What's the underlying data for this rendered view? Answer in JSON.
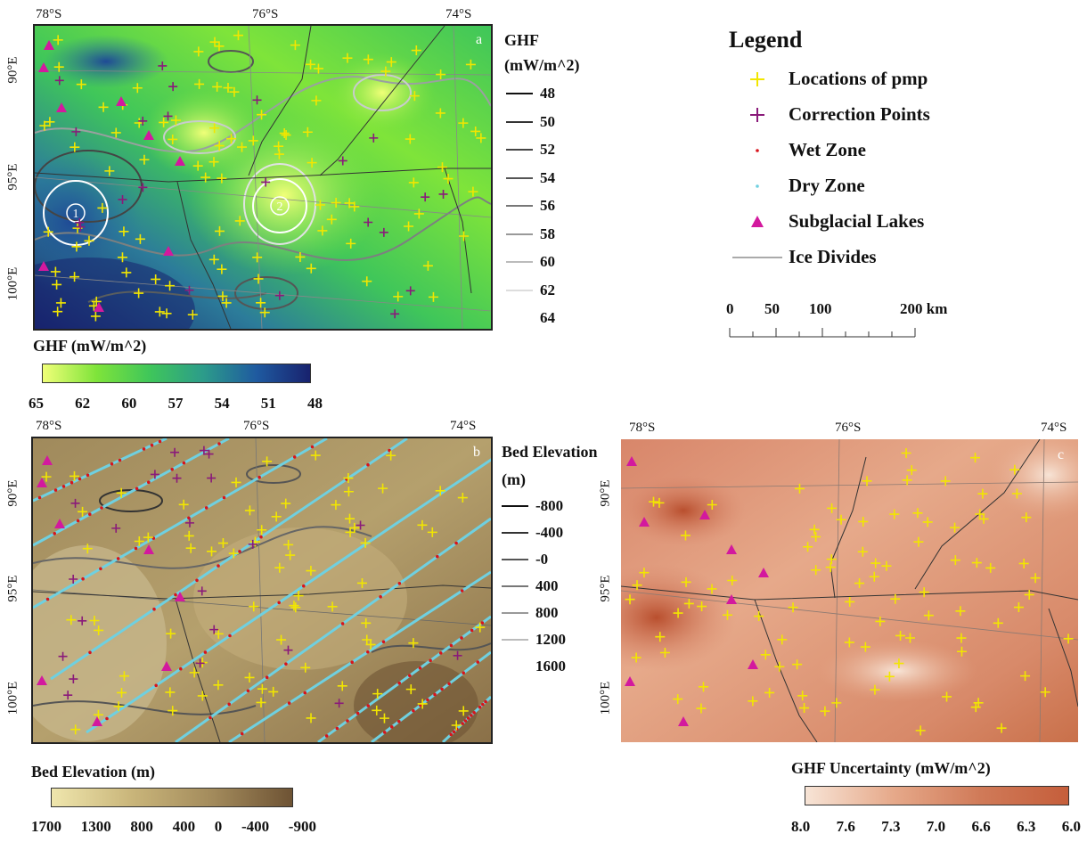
{
  "panel_a": {
    "letter": "a",
    "lat_labels": [
      "78°S",
      "76°S",
      "74°S"
    ],
    "lon_labels": [
      "90°E",
      "95°E",
      "100°E"
    ],
    "contour_title_line1": "GHF",
    "contour_title_line2": "(mW/m^2)",
    "contour_levels": [
      "48",
      "50",
      "52",
      "54",
      "56",
      "58",
      "60",
      "62",
      "64"
    ],
    "colorbar_title": "GHF (mW/m^2)",
    "colorbar_ticks": [
      "65",
      "62",
      "60",
      "57",
      "54",
      "51",
      "48"
    ],
    "circle_labels": [
      "1",
      "2"
    ]
  },
  "panel_b": {
    "letter": "b",
    "lat_labels": [
      "78°S",
      "76°S",
      "74°S"
    ],
    "lon_labels": [
      "90°E",
      "95°E",
      "100°E"
    ],
    "contour_title_line1": "Bed Elevation",
    "contour_title_line2": "(m)",
    "contour_levels": [
      "-800",
      "-400",
      "-0",
      "400",
      "800",
      "1200",
      "1600"
    ],
    "colorbar_title": "Bed Elevation (m)",
    "colorbar_ticks": [
      "1700",
      "1300",
      "800",
      "400",
      "0",
      "-400",
      "-900"
    ]
  },
  "panel_c": {
    "letter": "c",
    "lat_labels": [
      "78°S",
      "76°S",
      "74°S"
    ],
    "lon_labels": [
      "90°E",
      "95°E",
      "100°E"
    ],
    "colorbar_title": "GHF Uncertainty (mW/m^2)",
    "colorbar_ticks": [
      "8.0",
      "7.6",
      "7.3",
      "7.0",
      "6.6",
      "6.3",
      "6.0"
    ]
  },
  "legend": {
    "title": "Legend",
    "items": [
      {
        "label": "Locations of pmp",
        "icon": "plus-yellow-icon",
        "color": "#f2e600"
      },
      {
        "label": "Correction Points",
        "icon": "plus-purple-icon",
        "color": "#8a1a7a"
      },
      {
        "label": "Wet Zone",
        "icon": "dot-red-icon",
        "color": "#d8141c"
      },
      {
        "label": "Dry Zone",
        "icon": "dot-cyan-icon",
        "color": "#6fd0e0"
      },
      {
        "label": "Subglacial Lakes",
        "icon": "triangle-magenta-icon",
        "color": "#d3199e"
      },
      {
        "label": "Ice Divides",
        "icon": "line-gray-icon",
        "color": "#555555"
      }
    ]
  },
  "scalebar": {
    "labels": [
      "0",
      "50",
      "100",
      "200 km"
    ]
  },
  "colors": {
    "ghf_ramp": [
      "#f0ff78",
      "#7fe43a",
      "#3fc65a",
      "#2c9c8a",
      "#1f5aa0",
      "#18226e"
    ],
    "bed_ramp": [
      "#efe6ad",
      "#c9b57a",
      "#a38b5c",
      "#6e5334"
    ],
    "unc_ramp": [
      "#f7e4d6",
      "#e6a98a",
      "#c55e3b"
    ]
  }
}
